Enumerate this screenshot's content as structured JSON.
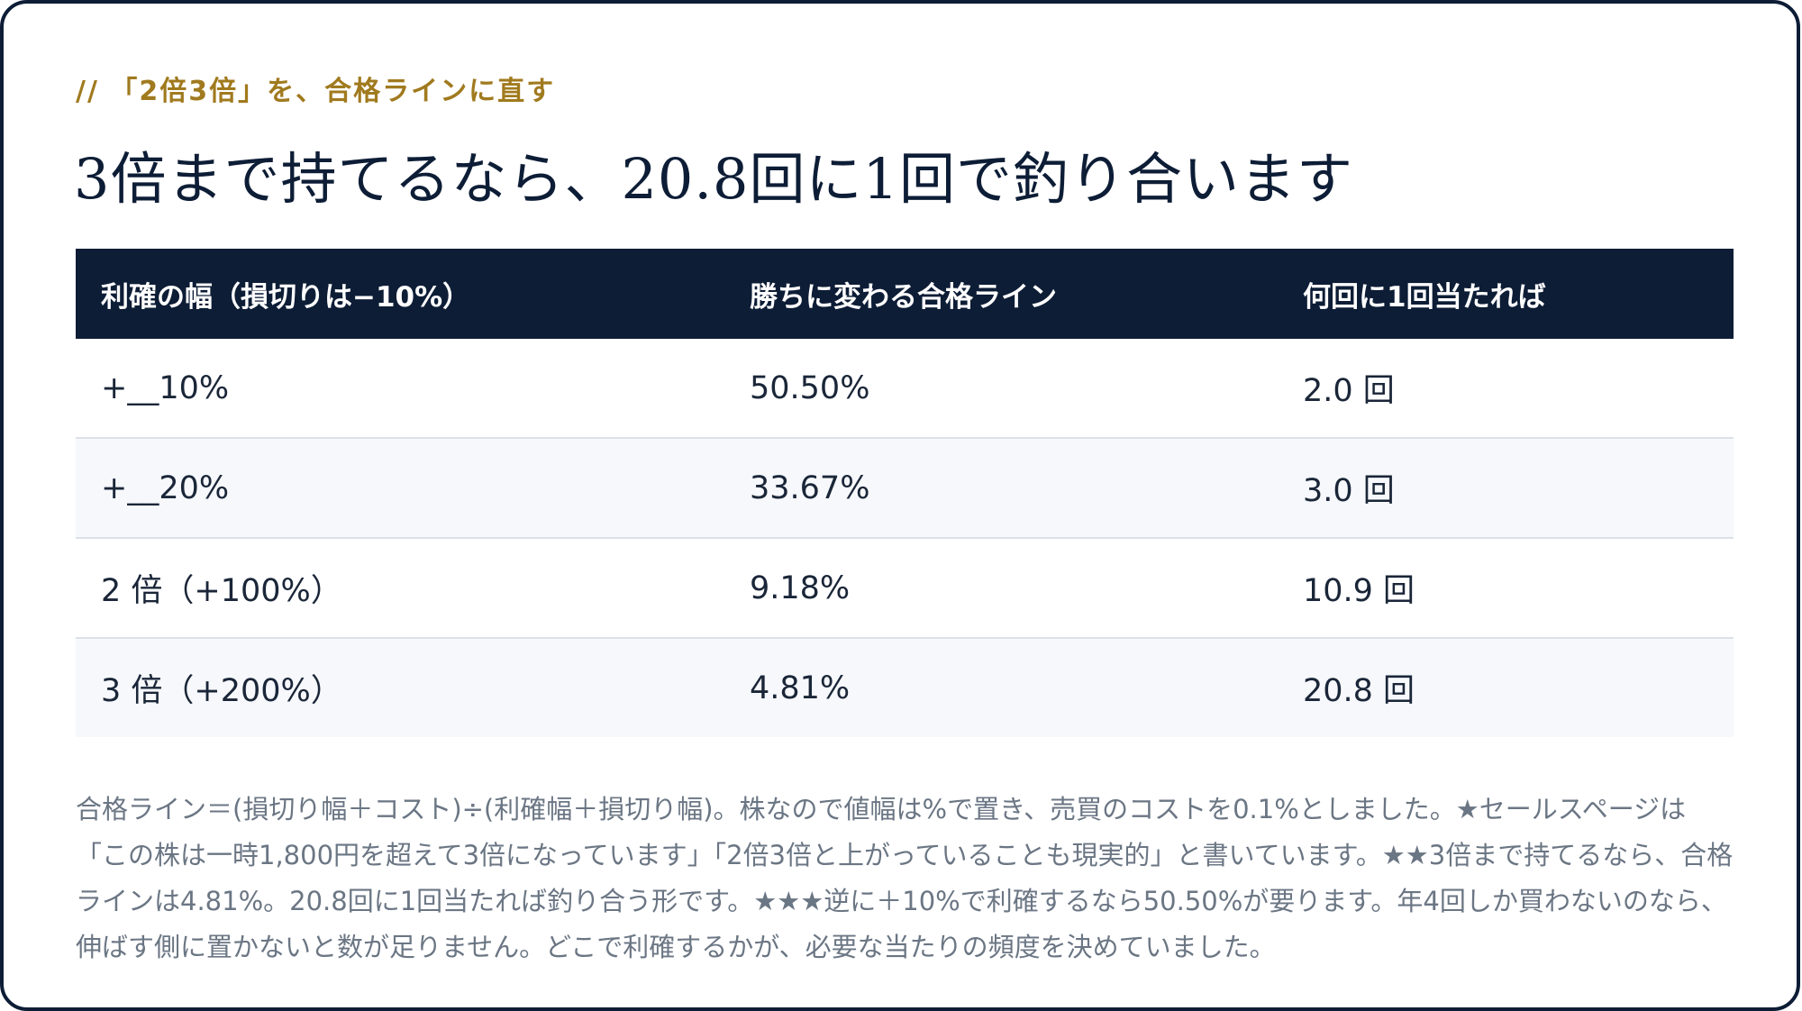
{
  "kicker": "// 「2倍3倍」を、合格ラインに直す",
  "headline": "3倍まで持てるなら、20.8回に1回で釣り合います",
  "table": {
    "headers": [
      "利確の幅（損切りは−10%）",
      "勝ちに変わる合格ライン",
      "何回に1回当たれば"
    ],
    "rows": [
      [
        "+__10%",
        "50.50%",
        "2.0 回"
      ],
      [
        "+__20%",
        "33.67%",
        "3.0 回"
      ],
      [
        "2 倍（+100%）",
        "9.18%",
        "10.9 回"
      ],
      [
        "3 倍（+200%）",
        "4.81%",
        "20.8 回"
      ]
    ]
  },
  "note": "合格ライン＝(損切り幅＋コスト)÷(利確幅＋損切り幅)。株なので値幅は%で置き、売買のコストを0.1%としました。★セールスページは「この株は一時1,800円を超えて3倍になっています」「2倍3倍と上がっていることも現実的」と書いています。★★3倍まで持てるなら、合格ラインは4.81%。20.8回に1回当たれば釣り合う形です。★★★逆に＋10%で利確するなら50.50%が要ります。年4回しか買わないのなら、伸ばす側に置かないと数が足りません。どこで利確するかが、必要な当たりの頻度を決めていました。",
  "colors": {
    "navy": "#0d1d36",
    "gold": "#a07a1e",
    "row_alt": "#f6f8fb",
    "note_text": "#6b7684"
  }
}
